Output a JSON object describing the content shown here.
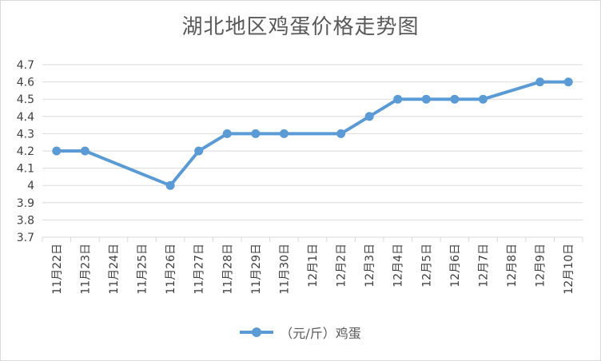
{
  "chart_data": {
    "type": "line",
    "title": "湖北地区鸡蛋价格走势图",
    "categories": [
      "11月22日",
      "11月23日",
      "11月24日",
      "11月25日",
      "11月26日",
      "11月27日",
      "11月28日",
      "11月29日",
      "11月30日",
      "12月1日",
      "12月2日",
      "12月3日",
      "12月4日",
      "12月5日",
      "12月6日",
      "12月7日",
      "12月8日",
      "12月9日",
      "12月10日"
    ],
    "series": [
      {
        "name": "（元/斤）鸡蛋",
        "values": [
          4.2,
          4.2,
          null,
          null,
          4.0,
          4.2,
          4.3,
          4.3,
          4.3,
          null,
          4.3,
          4.4,
          4.5,
          4.5,
          4.5,
          4.5,
          null,
          4.6,
          4.6
        ],
        "color": "#5b9bd5"
      }
    ],
    "y_ticks": [
      "3.7",
      "3.8",
      "3.9",
      "4",
      "4.1",
      "4.2",
      "4.3",
      "4.4",
      "4.5",
      "4.6",
      "4.7"
    ],
    "ylim": [
      3.7,
      4.7
    ],
    "grid": true,
    "gaps": "connected",
    "legend_position": "bottom"
  }
}
